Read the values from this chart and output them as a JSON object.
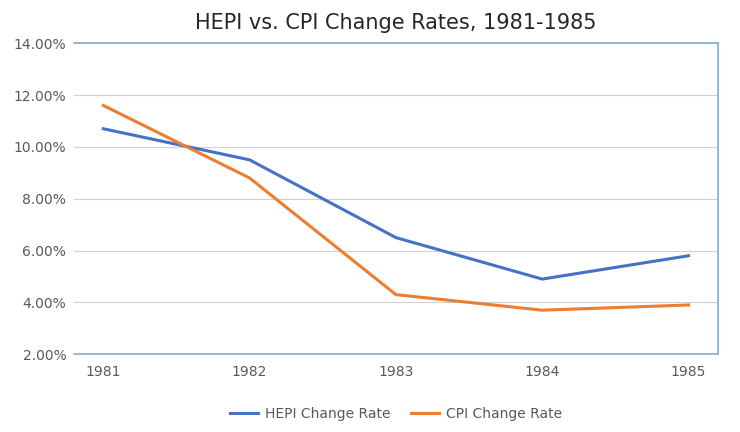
{
  "title": "HEPI vs. CPI Change Rates, 1981-1985",
  "years": [
    1981,
    1982,
    1983,
    1984,
    1985
  ],
  "hepi": [
    0.107,
    0.095,
    0.065,
    0.049,
    0.058
  ],
  "cpi": [
    0.116,
    0.088,
    0.043,
    0.037,
    0.039
  ],
  "hepi_color": "#4472C4",
  "cpi_color": "#ED7D31",
  "ylim_min": 0.02,
  "ylim_max": 0.14,
  "yticks": [
    0.02,
    0.04,
    0.06,
    0.08,
    0.1,
    0.12,
    0.14
  ],
  "hepi_label": "HEPI Change Rate",
  "cpi_label": "CPI Change Rate",
  "line_width": 2.2,
  "bg_color": "#FFFFFF",
  "plot_bg_color": "#FFFFFF",
  "grid_color": "#D0D0D0",
  "title_fontsize": 15,
  "tick_fontsize": 10,
  "legend_fontsize": 10,
  "border_color": "#7BAFD4"
}
